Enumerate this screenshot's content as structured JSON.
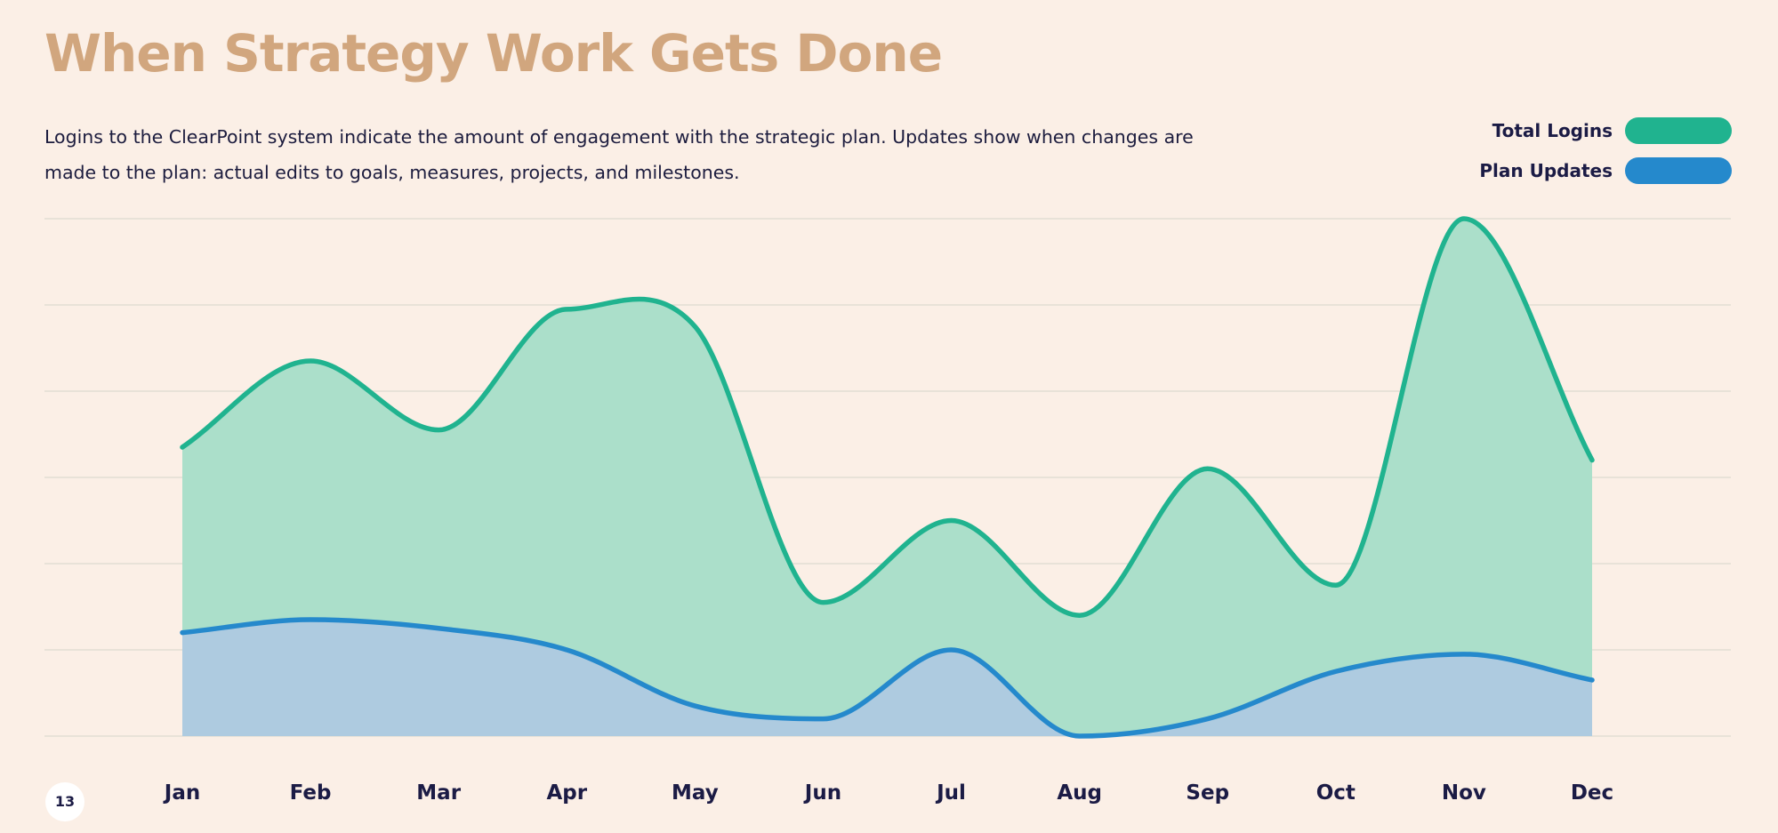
{
  "page": {
    "title": "When Strategy Work Gets Done",
    "description": "Logins to the ClearPoint system indicate the amount of engagement with the strategic plan. Updates show when changes are made to the plan: actual edits to goals, measures, projects, and milestones.",
    "page_number": "13"
  },
  "legend": {
    "items": [
      {
        "label": "Total Logins",
        "color": "#20b38f"
      },
      {
        "label": "Plan Updates",
        "color": "#2589cc"
      }
    ]
  },
  "chart_data": {
    "type": "area",
    "title": "When Strategy Work Gets Done",
    "categories": [
      "Jan",
      "Feb",
      "Mar",
      "Apr",
      "May",
      "Jun",
      "Jul",
      "Aug",
      "Sep",
      "Oct",
      "Nov",
      "Dec"
    ],
    "series": [
      {
        "name": "Total Logins",
        "values": [
          67,
          87,
          71,
          99,
          95,
          31,
          50,
          28,
          62,
          35,
          120,
          64
        ],
        "line_color": "#20b38f",
        "fill_color": "#abdfca"
      },
      {
        "name": "Plan Updates",
        "values": [
          24,
          27,
          25,
          20,
          7,
          4,
          20,
          0,
          4,
          15,
          19,
          13
        ],
        "line_color": "#2589cc",
        "fill_color": "#aecbe0"
      }
    ],
    "ylim": [
      0,
      120
    ],
    "yaxis_labels": false,
    "grid": true,
    "legend": "top-right",
    "grid_color": "#dcd9d0"
  }
}
